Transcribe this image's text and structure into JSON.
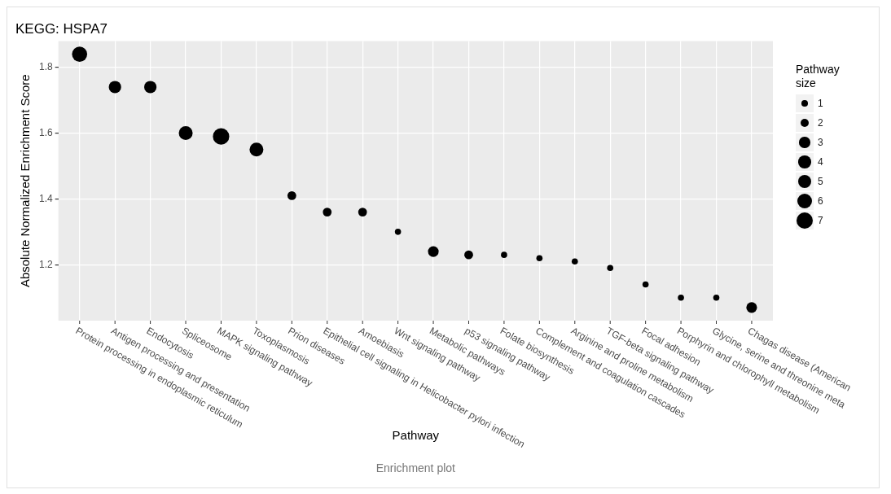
{
  "chart_data": {
    "type": "bubble",
    "title": "KEGG: HSPA7",
    "xlabel": "Pathway",
    "ylabel": "Absolute Normalized Enrichment Score",
    "legend_title": "Pathway size",
    "annotations": [
      "Enrichment plot"
    ],
    "categories": [
      "Protein processing in endoplasmic reticulum",
      "Antigen processing and presentation",
      "Endocytosis",
      "Spliceosome",
      "MAPK signaling pathway",
      "Toxoplasmosis",
      "Prion diseases",
      "Epithelial cell signaling in Helicobacter pylori infection",
      "Amoebiasis",
      "Wnt signaling pathway",
      "Metabolic pathways",
      "p53 signaling pathway",
      "Folate biosynthesis",
      "Complement and coagulation cascades",
      "Arginine and proline metabolism",
      "TGF-beta signaling pathway",
      "Focal adhesion",
      "Porphyrin and chlorophyll metabolism",
      "Glycine, serine and threonine meta",
      "Chagas disease (American"
    ],
    "values": [
      1.84,
      1.74,
      1.74,
      1.6,
      1.59,
      1.55,
      1.41,
      1.36,
      1.36,
      1.3,
      1.24,
      1.23,
      1.23,
      1.22,
      1.21,
      1.19,
      1.14,
      1.1,
      1.1,
      1.07
    ],
    "sizes": [
      6,
      4,
      4,
      5,
      7,
      5,
      2,
      2,
      2,
      1,
      3,
      2,
      1,
      1,
      1,
      1,
      1,
      1,
      1,
      3
    ],
    "size_legend": [
      1,
      2,
      3,
      4,
      5,
      6,
      7
    ],
    "color": "#000000",
    "ylim": [
      1.03,
      1.88
    ],
    "yticks": [
      1.2,
      1.4,
      1.6,
      1.8
    ],
    "grid": true
  }
}
